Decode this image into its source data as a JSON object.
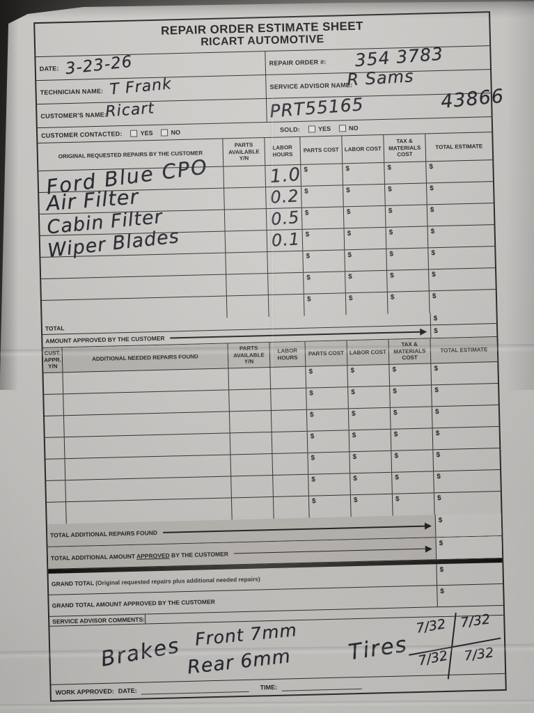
{
  "colors": {
    "paper": "#cac8c5",
    "ink": "#25252d",
    "shaded": "#b5b2ad",
    "background_dark": "#1d1c1a",
    "line": "#2b2b28"
  },
  "misc": {
    "dollar": "$"
  },
  "title": {
    "line1": "REPAIR ORDER ESTIMATE SHEET",
    "line2": "RICART AUTOMOTIVE"
  },
  "info": {
    "date_label": "DATE:",
    "date_value": "3-23-26",
    "repair_order_label": "REPAIR ORDER #:",
    "repair_order_value": "354 3783",
    "technician_label": "TECHNICIAN NAME:",
    "technician_value": "T Frank",
    "advisor_label": "SERVICE ADVISOR NAME:",
    "advisor_value": "R Sams",
    "customer_label": "CUSTOMER'S NAME:",
    "customer_value": "Ricart",
    "stock_value": "PRT55165",
    "ref_value": "43866",
    "contacted_label": "CUSTOMER CONTACTED:",
    "sold_label": "SOLD:",
    "yes_label": "YES",
    "no_label": "NO"
  },
  "table1": {
    "headers": [
      "ORIGINAL REQUESTED REPAIRS BY THE CUSTOMER",
      "PARTS\nAVAILABLE\nY/N",
      "LABOR\nHOURS",
      "PARTS COST",
      "LABOR COST",
      "TAX &\nMATERIALS\nCOST",
      "TOTAL ESTIMATE"
    ],
    "rows": [
      {
        "desc": "Ford Blue CPO",
        "hours": "1.0"
      },
      {
        "desc": "Air Filter",
        "hours": "0.2"
      },
      {
        "desc": "Cabin Filter",
        "hours": "0.5"
      },
      {
        "desc": "Wiper Blades",
        "hours": "0.1"
      },
      {
        "desc": "",
        "hours": ""
      },
      {
        "desc": "",
        "hours": ""
      },
      {
        "desc": "",
        "hours": ""
      }
    ],
    "total_label": "TOTAL",
    "approved_label": "AMOUNT APPROVED BY THE CUSTOMER"
  },
  "table2": {
    "headers": [
      "CUST.\nAPPR.\nY/N",
      "ADDITIONAL NEEDED REPAIRS FOUND",
      "PARTS\nAVAILABLE\nY/N",
      "LABOR\nHOURS",
      "PARTS COST",
      "LABOR COST",
      "TAX &\nMATERIALS\nCOST",
      "TOTAL ESTIMATE"
    ],
    "empty_row_count": 7,
    "total_additional_label": "TOTAL ADDITIONAL REPAIRS FOUND",
    "total_approved_pre": "TOTAL ADDITIONAL AMOUNT ",
    "total_approved_word": "APPROVED",
    "total_approved_post": " BY THE CUSTOMER"
  },
  "totals": {
    "grand_total_label": "GRAND TOTAL",
    "grand_total_paren": " (Original requested repairs plus additional needed repairs)",
    "grand_approved_label": "GRAND TOTAL AMOUNT APPROVED BY THE CUSTOMER",
    "comments_label": "SERVICE ADVISOR COMMENTS:"
  },
  "comments": {
    "brakes": "Brakes",
    "front": "Front 7mm",
    "rear": "Rear 6mm",
    "tires": "Tires",
    "tread_tl": "7/32",
    "tread_tr": "7/32",
    "tread_bl": "7/32",
    "tread_br": "7/32"
  },
  "footer": {
    "work_approved_label": "WORK APPROVED:",
    "date_label": "DATE:",
    "time_label": "TIME:"
  }
}
